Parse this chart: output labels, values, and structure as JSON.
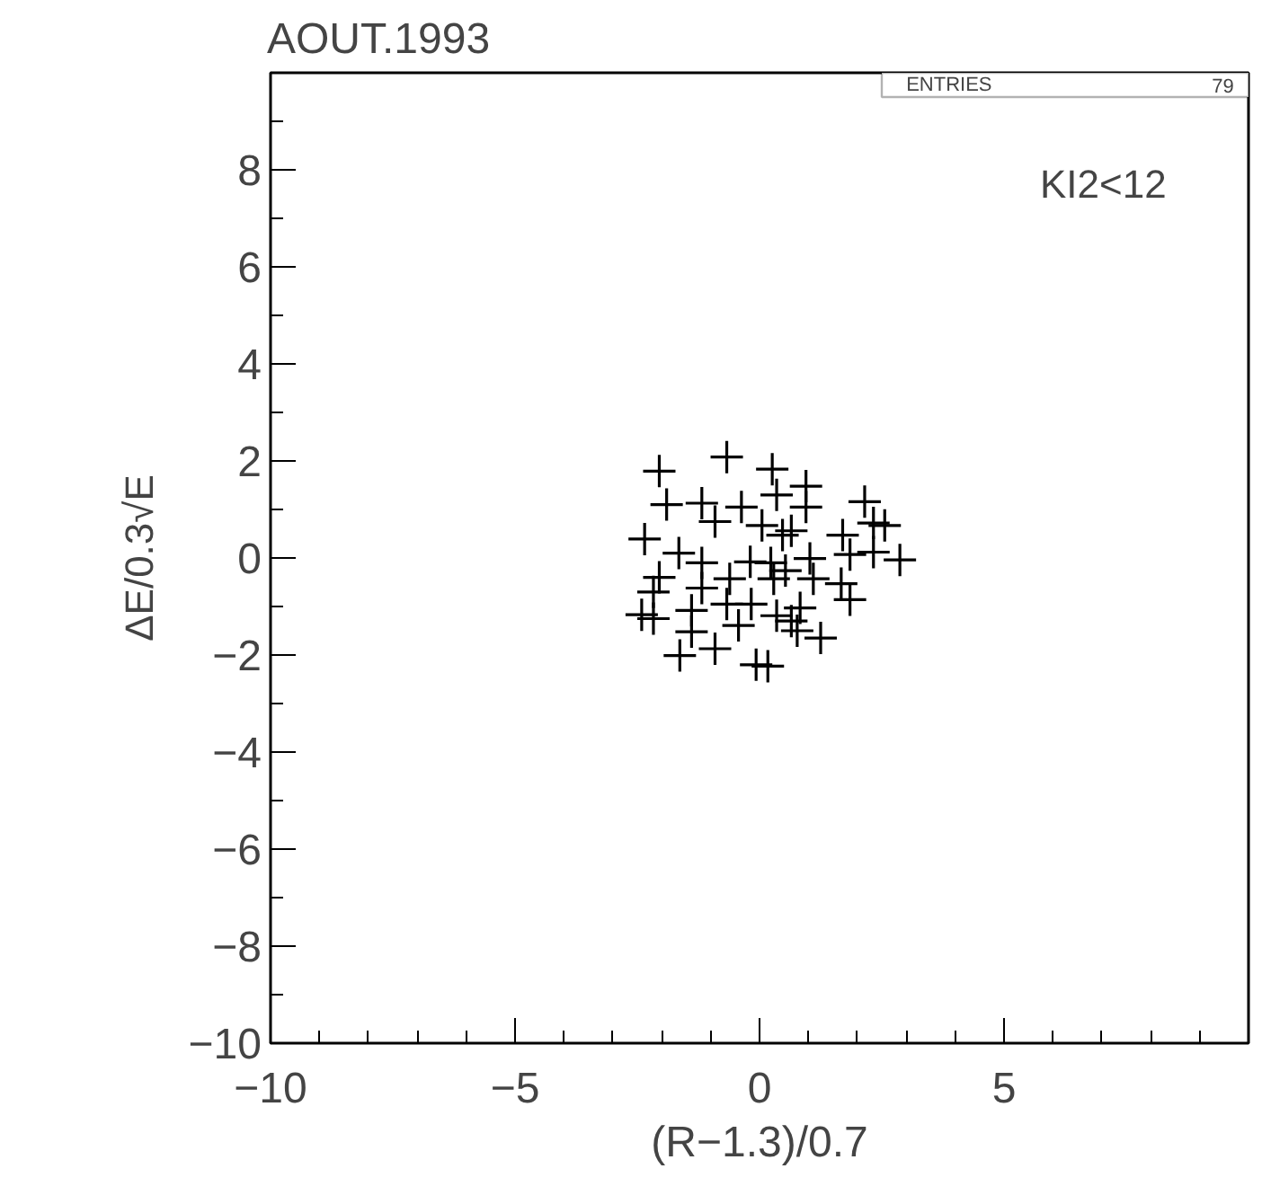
{
  "chart_data": {
    "type": "scatter",
    "title": "AOUT.1993",
    "xlabel": "(R−1.3)/0.7",
    "ylabel": "ΔE/0.3√E",
    "annotations": [
      "ENTRIES",
      "79",
      "KI2<12"
    ],
    "marker": "cross",
    "grid": false,
    "xlim": [
      -10,
      10
    ],
    "ylim": [
      -10,
      10
    ],
    "xticks": [
      -10,
      -5,
      0,
      5,
      {
        "value": -9,
        "label": null
      },
      {
        "value": -8,
        "label": null
      },
      {
        "value": -7,
        "label": null
      },
      {
        "value": -6,
        "label": null
      },
      {
        "value": -4,
        "label": null
      },
      {
        "value": -3,
        "label": null
      },
      {
        "value": -2,
        "label": null
      },
      {
        "value": -1,
        "label": null
      },
      {
        "value": 1,
        "label": null
      },
      {
        "value": 2,
        "label": null
      },
      {
        "value": 3,
        "label": null
      },
      {
        "value": 4,
        "label": null
      },
      {
        "value": 6,
        "label": null
      },
      {
        "value": 7,
        "label": null
      },
      {
        "value": 8,
        "label": null
      },
      {
        "value": 9,
        "label": null
      }
    ],
    "yticks": [
      -10,
      -8,
      -6,
      -4,
      -2,
      0,
      2,
      4,
      6,
      8,
      {
        "value": -9,
        "label": null
      },
      {
        "value": -7,
        "label": null
      },
      {
        "value": -5,
        "label": null
      },
      {
        "value": -3,
        "label": null
      },
      {
        "value": -1,
        "label": null
      },
      {
        "value": 1,
        "label": null
      },
      {
        "value": 3,
        "label": null
      },
      {
        "value": 5,
        "label": null
      },
      {
        "value": 7,
        "label": null
      },
      {
        "value": 9,
        "label": null
      }
    ],
    "x": [
      -2.05,
      -0.67,
      0.26,
      -1.9,
      -1.18,
      -0.91,
      0.35,
      0.95,
      0.95,
      2.15,
      2.33,
      2.56,
      -0.37,
      0.05,
      0.65,
      1.7,
      -2.35,
      -1.65,
      -1.18,
      -0.19,
      0.23,
      0.53,
      1.03,
      1.85,
      2.33,
      2.87,
      -2.05,
      -2.17,
      -1.18,
      1.1,
      1.67,
      1.85,
      -2.41,
      -2.17,
      -1.39,
      -0.67,
      -0.17,
      -0.43,
      0.35,
      0.83,
      0.77,
      1.25,
      -1.39,
      -0.91,
      -1.63,
      -0.07,
      0.17,
      0.47,
      0.29,
      -0.61,
      0.65
    ],
    "values": [
      1.79,
      2.08,
      1.83,
      1.1,
      1.13,
      0.75,
      1.3,
      1.48,
      1.05,
      1.16,
      0.72,
      0.67,
      1.05,
      0.67,
      0.56,
      0.47,
      0.39,
      0.1,
      -0.1,
      -0.08,
      -0.1,
      -0.26,
      -0.01,
      0.07,
      0.12,
      -0.04,
      -0.4,
      -0.7,
      -0.62,
      -0.43,
      -0.53,
      -0.86,
      -1.17,
      -1.25,
      -1.08,
      -0.95,
      -0.95,
      -1.39,
      -1.19,
      -1.03,
      -1.5,
      -1.65,
      -1.52,
      -1.87,
      -2.01,
      -2.2,
      -2.23,
      0.47,
      -0.43,
      -0.43,
      -1.3
    ],
    "color": "#000000"
  }
}
